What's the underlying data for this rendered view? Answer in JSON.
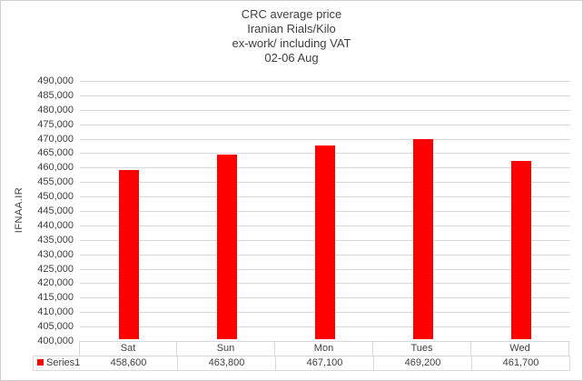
{
  "colors": {
    "bar": "#ff0000",
    "grid": "#d9d9d9",
    "text": "#404040",
    "border": "#d9d9d9"
  },
  "chart_data": {
    "type": "bar",
    "title_lines": [
      "CRC average price",
      "Iranian Rials/Kilo",
      "ex-work/ including VAT",
      "02-06 Aug"
    ],
    "ylabel": "IFNAA.IR",
    "categories": [
      "Sat",
      "Sun",
      "Mon",
      "Tues",
      "Wed"
    ],
    "series": [
      {
        "name": "Series1",
        "values": [
          458600,
          463800,
          467100,
          469200,
          461700
        ]
      }
    ],
    "value_labels": [
      "458,600",
      "463,800",
      "467,100",
      "469,200",
      "461,700"
    ],
    "ylim": [
      400000,
      490000
    ],
    "ytick_step": 5000,
    "bar_color": "#ff0000",
    "grid": true,
    "legend_position": "bottom-table"
  }
}
